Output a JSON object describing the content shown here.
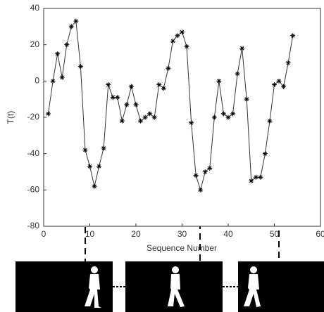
{
  "chart_data": {
    "type": "line",
    "xlabel": "Sequence Number",
    "ylabel": "T(t)",
    "x": [
      1,
      2,
      3,
      4,
      5,
      6,
      7,
      8,
      9,
      10,
      11,
      12,
      13,
      14,
      15,
      16,
      17,
      18,
      19,
      20,
      21,
      22,
      23,
      24,
      25,
      26,
      27,
      28,
      29,
      30,
      31,
      32,
      33,
      34,
      35,
      36,
      37,
      38,
      39,
      40,
      41,
      42,
      43,
      44,
      45,
      46,
      47,
      48,
      49,
      50,
      51,
      52,
      53,
      54
    ],
    "series": [
      {
        "color": "#333333",
        "values": [
          -18,
          0,
          15,
          2,
          20,
          30,
          33,
          8,
          -38,
          -47,
          -58,
          -47,
          -37,
          -2,
          -9,
          -9,
          -22,
          -13,
          -3,
          -13,
          -22,
          -20,
          -18,
          -20,
          -2,
          -4,
          7,
          22,
          25,
          27,
          19,
          -23,
          -52,
          -60,
          -50,
          -48,
          -20,
          0,
          -18,
          -20,
          -18,
          4,
          18,
          -10,
          -55,
          -53,
          -53,
          -40,
          -22,
          -2,
          0,
          -3,
          10,
          25
        ]
      }
    ],
    "xlim": [
      0,
      60
    ],
    "xticks": [
      0,
      10,
      20,
      30,
      40,
      50,
      60
    ],
    "ylim": [
      -80,
      40
    ],
    "yticks": [
      -80,
      -60,
      -40,
      -20,
      0,
      20,
      40
    ]
  }
}
